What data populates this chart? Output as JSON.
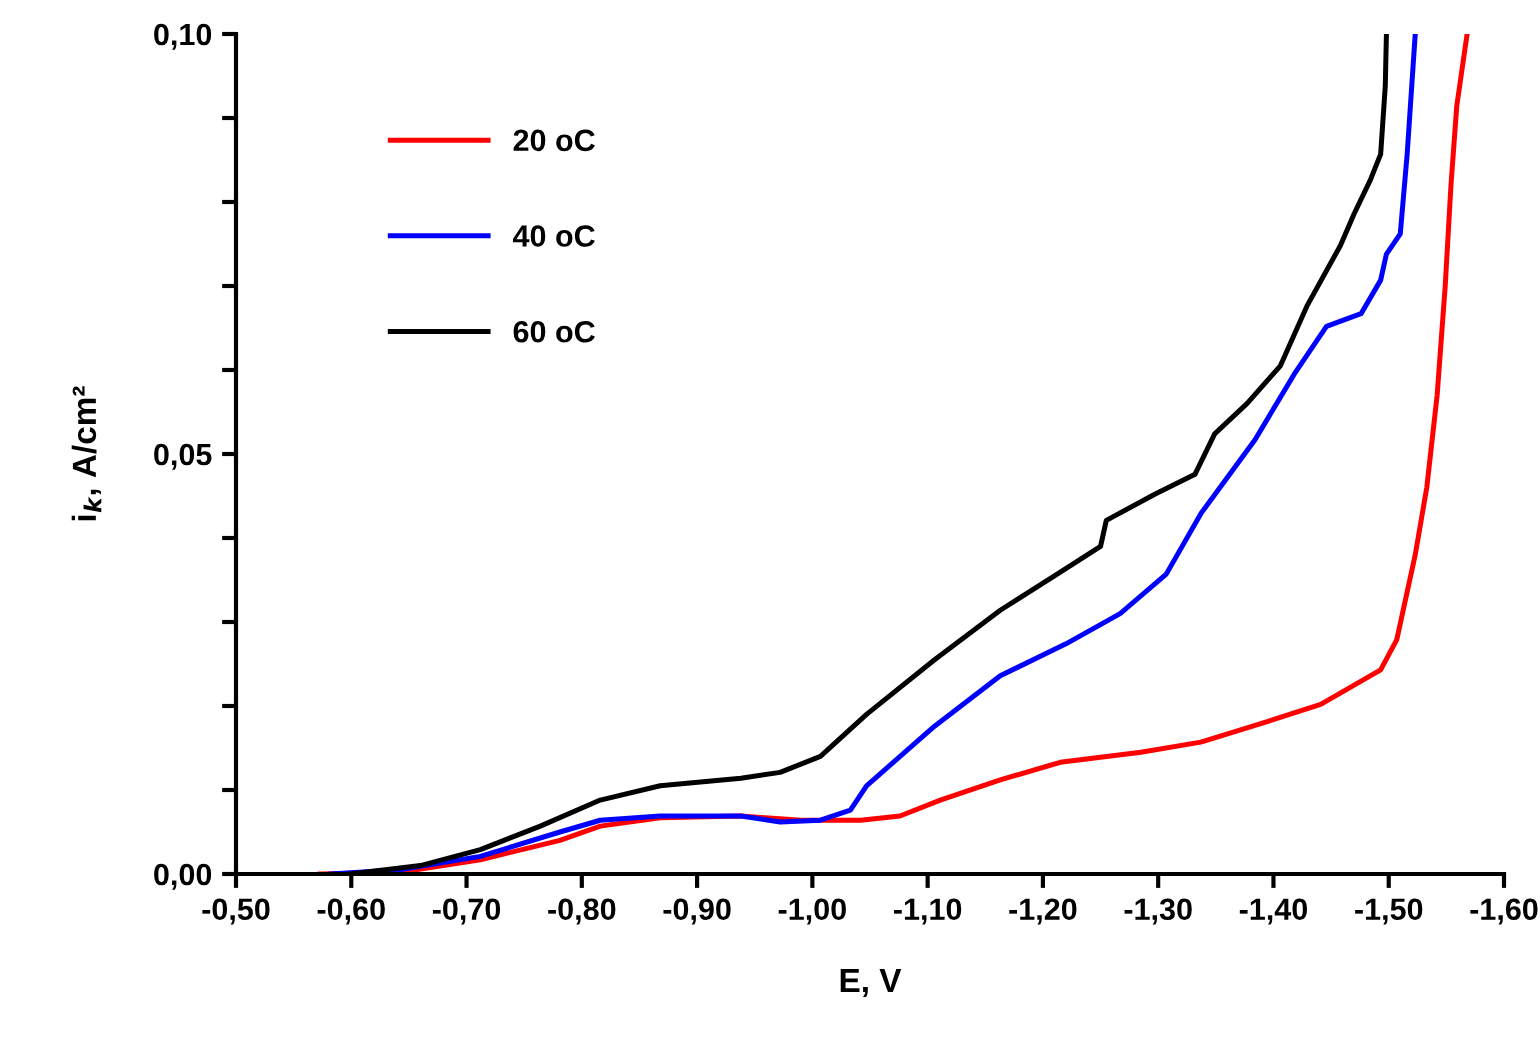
{
  "chart_data": {
    "type": "line",
    "xlabel": "E, V",
    "ylabel": "i$_{k}$, A/cm²",
    "xlim": [
      -0.5,
      -1.6
    ],
    "xticks": [
      {
        "value": -0.5,
        "label": "-0,50"
      },
      {
        "value": -0.6,
        "label": "-0,60"
      },
      {
        "value": -0.7,
        "label": "-0,70"
      },
      {
        "value": -0.8,
        "label": "-0,80"
      },
      {
        "value": -0.9,
        "label": "-0,90"
      },
      {
        "value": -1.0,
        "label": "-1,00"
      },
      {
        "value": -1.1,
        "label": "-1,10"
      },
      {
        "value": -1.2,
        "label": "-1,20"
      },
      {
        "value": -1.3,
        "label": "-1,30"
      },
      {
        "value": -1.4,
        "label": "-1,40"
      },
      {
        "value": -1.5,
        "label": "-1,50"
      },
      {
        "value": -1.6,
        "label": "-1,60"
      }
    ],
    "ylim": [
      0,
      0.1
    ],
    "yticks": [
      {
        "value": 0,
        "label": "0,00"
      },
      {
        "value": 0.01,
        "label": null
      },
      {
        "value": 0.02,
        "label": null
      },
      {
        "value": 0.03,
        "label": null
      },
      {
        "value": 0.04,
        "label": null
      },
      {
        "value": 0.05,
        "label": "0,05"
      },
      {
        "value": 0.06,
        "label": null
      },
      {
        "value": 0.07,
        "label": null
      },
      {
        "value": 0.08,
        "label": null
      },
      {
        "value": 0.09,
        "label": null
      },
      {
        "value": 0.1,
        "label": "0,10"
      }
    ],
    "grid": false,
    "legend": "top left",
    "marker": "none",
    "line_style": "solid",
    "series": [
      {
        "name": "20 oC",
        "color": "#ff0000",
        "x": [
          -0.573,
          -0.642,
          -0.712,
          -0.781,
          -0.816,
          -0.868,
          -0.938,
          -0.99,
          -1.042,
          -1.076,
          -1.111,
          -1.163,
          -1.215,
          -1.285,
          -1.337,
          -1.389,
          -1.441,
          -1.493,
          -1.507,
          -1.523,
          -1.533,
          -1.542,
          -1.549,
          -1.554,
          -1.559,
          -1.568
        ],
        "values": [
          0,
          0.0002,
          0.0017,
          0.004,
          0.0057,
          0.0067,
          0.0069,
          0.0064,
          0.0064,
          0.0069,
          0.0088,
          0.0112,
          0.0133,
          0.0145,
          0.0157,
          0.0179,
          0.0202,
          0.0243,
          0.0279,
          0.038,
          0.046,
          0.057,
          0.07,
          0.082,
          0.0914,
          0.1
        ]
      },
      {
        "name": "40 oC",
        "color": "#0000ff",
        "x": [
          -0.582,
          -0.642,
          -0.712,
          -0.781,
          -0.816,
          -0.868,
          -0.938,
          -0.972,
          -1.007,
          -1.033,
          -1.047,
          -1.106,
          -1.163,
          -1.22,
          -1.267,
          -1.307,
          -1.337,
          -1.384,
          -1.418,
          -1.446,
          -1.476,
          -1.493,
          -1.498,
          -1.51,
          -1.516,
          -1.523
        ],
        "values": [
          0,
          0.0005,
          0.0021,
          0.005,
          0.0064,
          0.0069,
          0.0069,
          0.0062,
          0.0064,
          0.0076,
          0.0105,
          0.0176,
          0.0236,
          0.0274,
          0.031,
          0.0357,
          0.0429,
          0.0517,
          0.0595,
          0.0652,
          0.0667,
          0.0707,
          0.0738,
          0.0762,
          0.0857,
          0.1
        ]
      },
      {
        "name": "60 oC",
        "color": "#000000",
        "x": [
          -0.599,
          -0.66,
          -0.712,
          -0.764,
          -0.816,
          -0.868,
          -0.938,
          -0.972,
          -1.007,
          -1.047,
          -1.106,
          -1.163,
          -1.21,
          -1.25,
          -1.255,
          -1.297,
          -1.332,
          -1.349,
          -1.377,
          -1.406,
          -1.429,
          -1.458,
          -1.47,
          -1.484,
          -1.493,
          -1.497,
          -1.498
        ],
        "values": [
          0,
          0.001,
          0.0029,
          0.0057,
          0.0088,
          0.0105,
          0.0114,
          0.0121,
          0.014,
          0.019,
          0.0255,
          0.0314,
          0.0355,
          0.039,
          0.0421,
          0.0452,
          0.0476,
          0.0524,
          0.056,
          0.0605,
          0.0676,
          0.0748,
          0.0786,
          0.0826,
          0.0857,
          0.0938,
          0.1
        ]
      }
    ]
  }
}
